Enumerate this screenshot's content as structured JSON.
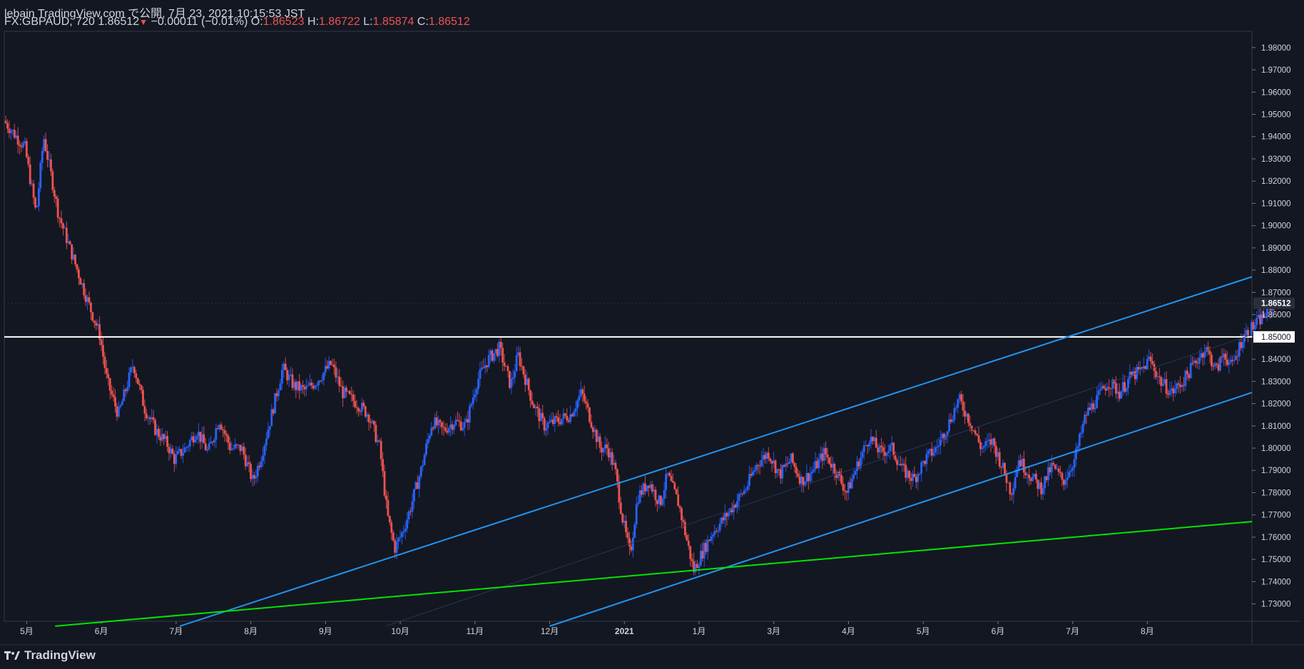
{
  "header": {
    "published": "lebain TradingView.com で公開, 7月 23, 2021 10:15:53 JST",
    "symbol_tf": "FX:GBPAUD, 720",
    "last": "1.86512",
    "change": "−0.00011 (−0.01%)",
    "o_label": "O:",
    "o_value": "1.86523",
    "h_label": "H:",
    "h_value": "1.86722",
    "l_label": "L:",
    "l_value": "1.85874",
    "c_label": "C:",
    "c_value": "1.86512"
  },
  "footer": {
    "brand": "TradingView"
  },
  "colors": {
    "background": "#131722",
    "up": "#2962ff",
    "down": "#ef5350",
    "channel": "#2196f3",
    "support": "#00e600",
    "level": "#ffffff"
  },
  "chart_data": {
    "type": "candlestick",
    "symbol": "FX:GBPAUD",
    "timeframe": "720",
    "ylim": [
      1.7222,
      1.9873
    ],
    "y_ticks": [
      "1.98000",
      "1.97000",
      "1.96000",
      "1.95000",
      "1.94000",
      "1.93000",
      "1.92000",
      "1.91000",
      "1.90000",
      "1.89000",
      "1.88000",
      "1.87000",
      "1.86000",
      "1.85000",
      "1.84000",
      "1.83000",
      "1.82000",
      "1.81000",
      "1.80000",
      "1.79000",
      "1.78000",
      "1.77000",
      "1.76000",
      "1.75000",
      "1.74000",
      "1.73000"
    ],
    "y_tick_values": [
      1.98,
      1.97,
      1.96,
      1.95,
      1.94,
      1.93,
      1.92,
      1.91,
      1.9,
      1.89,
      1.88,
      1.87,
      1.86,
      1.85,
      1.84,
      1.83,
      1.82,
      1.81,
      1.8,
      1.79,
      1.78,
      1.77,
      1.76,
      1.75,
      1.74,
      1.73
    ],
    "x_labels": [
      "5月",
      "6月",
      "7月",
      "8月",
      "9月",
      "10月",
      "11月",
      "12月",
      "2021",
      "1月",
      "3月",
      "4月",
      "5月",
      "6月",
      "7月",
      "8月"
    ],
    "x_label_months": [
      0,
      1,
      2,
      3,
      4,
      5,
      6,
      7,
      8,
      9,
      10,
      11,
      12,
      13,
      14,
      15
    ],
    "x_range_months": [
      -0.3,
      16.4
    ],
    "current_price_label": "1.86512",
    "current_price": 1.86512,
    "horizontal_level_label": "1.85000",
    "horizontal_level": 1.85,
    "price_path": [
      [
        -0.3,
        1.948
      ],
      [
        0.0,
        1.935
      ],
      [
        0.15,
        1.905
      ],
      [
        0.25,
        1.94
      ],
      [
        0.45,
        1.905
      ],
      [
        0.7,
        1.88
      ],
      [
        0.85,
        1.865
      ],
      [
        1.0,
        1.851
      ],
      [
        1.1,
        1.83
      ],
      [
        1.25,
        1.815
      ],
      [
        1.45,
        1.838
      ],
      [
        1.6,
        1.818
      ],
      [
        1.75,
        1.808
      ],
      [
        1.9,
        1.802
      ],
      [
        2.0,
        1.795
      ],
      [
        2.15,
        1.8
      ],
      [
        2.3,
        1.808
      ],
      [
        2.45,
        1.798
      ],
      [
        2.6,
        1.813
      ],
      [
        2.75,
        1.8
      ],
      [
        2.9,
        1.8
      ],
      [
        3.05,
        1.785
      ],
      [
        3.15,
        1.795
      ],
      [
        3.3,
        1.815
      ],
      [
        3.45,
        1.836
      ],
      [
        3.6,
        1.828
      ],
      [
        3.75,
        1.826
      ],
      [
        3.9,
        1.83
      ],
      [
        4.1,
        1.838
      ],
      [
        4.25,
        1.825
      ],
      [
        4.45,
        1.82
      ],
      [
        4.6,
        1.815
      ],
      [
        4.75,
        1.8
      ],
      [
        4.85,
        1.77
      ],
      [
        4.95,
        1.755
      ],
      [
        5.05,
        1.762
      ],
      [
        5.15,
        1.772
      ],
      [
        5.3,
        1.79
      ],
      [
        5.45,
        1.812
      ],
      [
        5.6,
        1.808
      ],
      [
        5.75,
        1.812
      ],
      [
        5.9,
        1.81
      ],
      [
        6.05,
        1.83
      ],
      [
        6.2,
        1.84
      ],
      [
        6.35,
        1.845
      ],
      [
        6.5,
        1.828
      ],
      [
        6.6,
        1.842
      ],
      [
        6.8,
        1.82
      ],
      [
        6.95,
        1.81
      ],
      [
        7.1,
        1.812
      ],
      [
        7.3,
        1.815
      ],
      [
        7.45,
        1.825
      ],
      [
        7.55,
        1.815
      ],
      [
        7.7,
        1.8
      ],
      [
        7.8,
        1.8
      ],
      [
        7.9,
        1.79
      ],
      [
        8.0,
        1.768
      ],
      [
        8.1,
        1.752
      ],
      [
        8.2,
        1.778
      ],
      [
        8.35,
        1.785
      ],
      [
        8.5,
        1.775
      ],
      [
        8.6,
        1.788
      ],
      [
        8.75,
        1.775
      ],
      [
        8.85,
        1.76
      ],
      [
        8.95,
        1.745
      ],
      [
        9.05,
        1.752
      ],
      [
        9.2,
        1.762
      ],
      [
        9.35,
        1.768
      ],
      [
        9.5,
        1.775
      ],
      [
        9.65,
        1.782
      ],
      [
        9.8,
        1.793
      ],
      [
        9.95,
        1.798
      ],
      [
        10.1,
        1.788
      ],
      [
        10.25,
        1.795
      ],
      [
        10.4,
        1.785
      ],
      [
        10.55,
        1.79
      ],
      [
        10.7,
        1.798
      ],
      [
        10.85,
        1.79
      ],
      [
        11.0,
        1.78
      ],
      [
        11.15,
        1.793
      ],
      [
        11.3,
        1.805
      ],
      [
        11.45,
        1.798
      ],
      [
        11.6,
        1.8
      ],
      [
        11.75,
        1.79
      ],
      [
        11.9,
        1.786
      ],
      [
        12.05,
        1.795
      ],
      [
        12.2,
        1.8
      ],
      [
        12.35,
        1.81
      ],
      [
        12.5,
        1.822
      ],
      [
        12.65,
        1.812
      ],
      [
        12.8,
        1.8
      ],
      [
        12.95,
        1.803
      ],
      [
        13.1,
        1.79
      ],
      [
        13.2,
        1.78
      ],
      [
        13.3,
        1.795
      ],
      [
        13.45,
        1.788
      ],
      [
        13.6,
        1.782
      ],
      [
        13.75,
        1.792
      ],
      [
        13.9,
        1.785
      ],
      [
        14.05,
        1.795
      ],
      [
        14.2,
        1.815
      ],
      [
        14.35,
        1.822
      ],
      [
        14.5,
        1.83
      ],
      [
        14.65,
        1.825
      ],
      [
        14.8,
        1.832
      ],
      [
        14.95,
        1.835
      ],
      [
        15.05,
        1.84
      ],
      [
        15.2,
        1.83
      ],
      [
        15.35,
        1.825
      ],
      [
        15.5,
        1.83
      ],
      [
        15.65,
        1.838
      ],
      [
        15.8,
        1.845
      ],
      [
        15.95,
        1.835
      ],
      [
        16.05,
        1.843
      ],
      [
        16.15,
        1.836
      ],
      [
        16.3,
        1.85
      ],
      [
        16.45,
        1.855
      ],
      [
        16.6,
        1.86
      ],
      [
        16.7,
        1.865
      ]
    ],
    "trendlines": [
      {
        "name": "channel-upper",
        "color": "#2196f3",
        "from": [
          2.05,
          1.72
        ],
        "to": [
          16.4,
          1.877
        ]
      },
      {
        "name": "channel-lower",
        "color": "#2196f3",
        "from": [
          7.0,
          1.72
        ],
        "to": [
          16.4,
          1.825
        ]
      },
      {
        "name": "channel-mid",
        "color": "#2a3450",
        "from": [
          4.8,
          1.72
        ],
        "to": [
          16.4,
          1.851
        ]
      },
      {
        "name": "support",
        "color": "#00e600",
        "from": [
          0.38,
          1.72
        ],
        "to": [
          16.4,
          1.767
        ]
      }
    ]
  }
}
